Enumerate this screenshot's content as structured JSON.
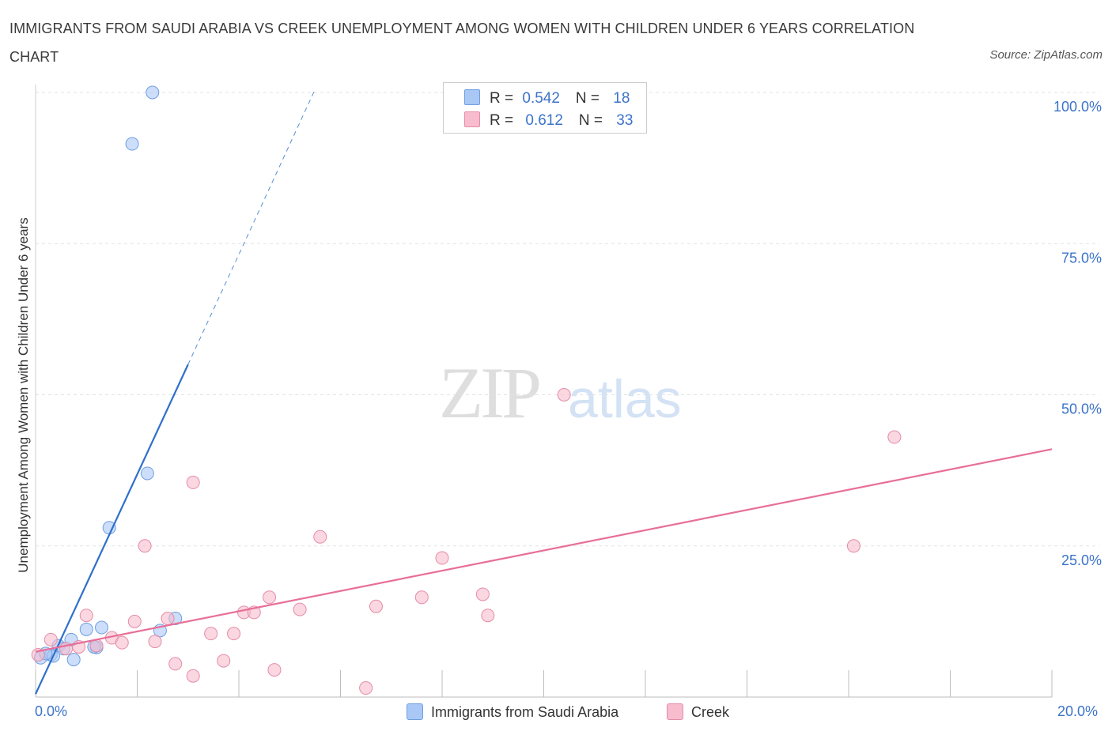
{
  "chart_data": {
    "type": "scatter",
    "title": "IMMIGRANTS FROM SAUDI ARABIA VS CREEK UNEMPLOYMENT AMONG WOMEN WITH CHILDREN UNDER 6 YEARS CORRELATION CHART",
    "source": "Source: ZipAtlas.com",
    "xlabel": "",
    "ylabel": "Unemployment Among Women with Children Under 6 years",
    "xlim": [
      0,
      20
    ],
    "ylim": [
      0,
      100
    ],
    "x_tick_labels": {
      "min": "0.0%",
      "max": "20.0%"
    },
    "y_ticks": [
      {
        "value": 25,
        "label": "25.0%"
      },
      {
        "value": 50,
        "label": "50.0%"
      },
      {
        "value": 75,
        "label": "75.0%"
      },
      {
        "value": 100,
        "label": "100.0%"
      }
    ],
    "watermark": {
      "zip": "ZIP",
      "atlas": "atlas"
    },
    "legend": {
      "rows": [
        {
          "r_label": "R = ",
          "r_value": "0.542",
          "n_label": "N = ",
          "n_value": "18",
          "color": "#aac8f5"
        },
        {
          "r_label": "R = ",
          "r_value": "0.612",
          "n_label": "N = ",
          "n_value": "33",
          "color": "#f7bccd"
        }
      ]
    },
    "series": [
      {
        "name": "Immigrants from Saudi Arabia",
        "color": "#aac8f5",
        "edge": "#6f9ee0",
        "line_color": "#2f6fcb",
        "trend": {
          "x0": 0.0,
          "y0": 0.5,
          "x1": 3.0,
          "y1": 55.0,
          "dash_to_x": 5.5,
          "dash_to_y": 100.5
        },
        "points": [
          [
            0.1,
            6.5
          ],
          [
            0.3,
            7.0
          ],
          [
            0.35,
            6.8
          ],
          [
            0.45,
            8.5
          ],
          [
            0.55,
            8.0
          ],
          [
            0.7,
            9.5
          ],
          [
            0.75,
            6.2
          ],
          [
            1.2,
            8.2
          ],
          [
            1.15,
            8.3
          ],
          [
            1.3,
            11.5
          ],
          [
            1.0,
            11.2
          ],
          [
            1.45,
            28.0
          ],
          [
            2.2,
            37.0
          ],
          [
            1.9,
            91.5
          ],
          [
            2.3,
            100.0
          ],
          [
            2.45,
            11.0
          ],
          [
            2.75,
            13.0
          ],
          [
            0.2,
            7.2
          ]
        ]
      },
      {
        "name": "Creek",
        "color": "#f7bccd",
        "edge": "#e58ca8",
        "line_color": "#e86e98",
        "trend": {
          "x0": 0.0,
          "y0": 7.5,
          "x1": 20.0,
          "y1": 41.0
        },
        "points": [
          [
            0.05,
            7.0
          ],
          [
            0.3,
            9.5
          ],
          [
            0.6,
            8.0
          ],
          [
            0.85,
            8.3
          ],
          [
            1.0,
            13.5
          ],
          [
            1.2,
            8.5
          ],
          [
            1.5,
            9.8
          ],
          [
            1.7,
            9.0
          ],
          [
            1.95,
            12.5
          ],
          [
            2.15,
            25.0
          ],
          [
            2.35,
            9.2
          ],
          [
            2.6,
            13.0
          ],
          [
            2.75,
            5.5
          ],
          [
            3.1,
            3.5
          ],
          [
            3.1,
            35.5
          ],
          [
            3.45,
            10.5
          ],
          [
            3.7,
            6.0
          ],
          [
            3.9,
            10.5
          ],
          [
            4.1,
            14.0
          ],
          [
            4.3,
            14.0
          ],
          [
            4.6,
            16.5
          ],
          [
            4.7,
            4.5
          ],
          [
            5.2,
            14.5
          ],
          [
            5.6,
            26.5
          ],
          [
            6.5,
            1.5
          ],
          [
            6.7,
            15.0
          ],
          [
            7.6,
            16.5
          ],
          [
            8.0,
            23.0
          ],
          [
            8.8,
            17.0
          ],
          [
            8.9,
            13.5
          ],
          [
            10.4,
            50.0
          ],
          [
            16.1,
            25.0
          ],
          [
            16.9,
            43.0
          ]
        ]
      }
    ]
  }
}
